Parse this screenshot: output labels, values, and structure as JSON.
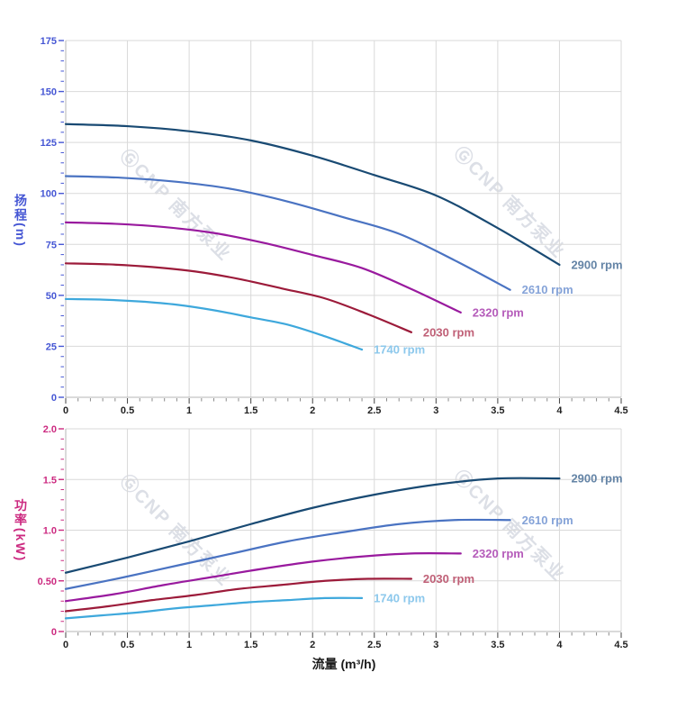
{
  "watermark": {
    "text": "ⒼCNP 南方泵业",
    "color": "#dcdfe6"
  },
  "x_axis": {
    "min": 0,
    "max": 4.5,
    "tick_values": [
      0,
      0.5,
      1,
      1.5,
      2,
      2.5,
      3,
      3.5,
      4,
      4.5
    ],
    "tick_labels": [
      "0",
      "0.5",
      "1",
      "1.5",
      "2",
      "2.5",
      "3",
      "3.5",
      "4",
      "4.5"
    ],
    "minor_step": 0.1,
    "label_color": "#222222"
  },
  "chart_data": [
    {
      "type": "line",
      "name": "head-chart",
      "ylabel": "扬程(m)",
      "xlabel": "",
      "axis_color": "#4556d4",
      "xlim": [
        0,
        4.5
      ],
      "ylim": [
        0,
        175
      ],
      "ytick_values": [
        0,
        25,
        50,
        75,
        100,
        125,
        150,
        175
      ],
      "ytick_labels": [
        "0",
        "25",
        "50",
        "75",
        "100",
        "125",
        "150",
        "175"
      ],
      "y_minor_step": 5,
      "grid": true,
      "legend_position": "curve-end",
      "series": [
        {
          "name": "2900 rpm",
          "color": "#194a73",
          "label_color": "#6484a6",
          "x": [
            0,
            0.5,
            1,
            1.5,
            2,
            2.5,
            3,
            3.5,
            4
          ],
          "y": [
            134,
            133,
            130.5,
            126,
            118.5,
            109,
            99,
            83,
            65
          ]
        },
        {
          "name": "2610 rpm",
          "color": "#4a73c2",
          "label_color": "#85a3d8",
          "x": [
            0,
            0.45,
            0.9,
            1.35,
            1.8,
            2.25,
            2.7,
            3.15,
            3.6
          ],
          "y": [
            108.5,
            107.7,
            105.7,
            102.1,
            96,
            88.3,
            80.2,
            67.2,
            52.7
          ]
        },
        {
          "name": "2320 rpm",
          "color": "#991a9e",
          "label_color": "#b55cba",
          "x": [
            0,
            0.4,
            0.8,
            1.2,
            1.6,
            2,
            2.4,
            2.8,
            3.2
          ],
          "y": [
            85.8,
            85.1,
            83.5,
            80.6,
            75.8,
            69.8,
            63.4,
            53.1,
            41.6
          ]
        },
        {
          "name": "2030 rpm",
          "color": "#9c1b3a",
          "label_color": "#c06077",
          "x": [
            0,
            0.35,
            0.7,
            1.05,
            1.4,
            1.75,
            2.1,
            2.45,
            2.8
          ],
          "y": [
            65.7,
            65.2,
            63.9,
            61.7,
            58.1,
            53.4,
            48.5,
            40.7,
            31.9
          ]
        },
        {
          "name": "1740 rpm",
          "color": "#3ea8dc",
          "label_color": "#8cc8ec",
          "x": [
            0,
            0.3,
            0.6,
            0.9,
            1.2,
            1.5,
            1.8,
            2.1,
            2.4
          ],
          "y": [
            48.2,
            47.9,
            47,
            45.4,
            42.7,
            39.2,
            35.6,
            29.9,
            23.4
          ]
        }
      ]
    },
    {
      "type": "line",
      "name": "power-chart",
      "ylabel": "功率(kW)",
      "xlabel": "流量 (m³/h)",
      "axis_color": "#cc2a80",
      "xlim": [
        0,
        4.5
      ],
      "ylim": [
        0,
        2
      ],
      "ytick_values": [
        0,
        0.5,
        1,
        1.5,
        2
      ],
      "ytick_labels": [
        "0",
        "0.50",
        "1.0",
        "1.5",
        "2.0"
      ],
      "y_minor_step": 0.1,
      "grid": true,
      "legend_position": "curve-end",
      "series": [
        {
          "name": "2900 rpm",
          "color": "#194a73",
          "label_color": "#6484a6",
          "x": [
            0,
            0.5,
            1,
            1.5,
            2,
            2.5,
            3,
            3.5,
            4
          ],
          "y": [
            0.58,
            0.73,
            0.89,
            1.06,
            1.22,
            1.35,
            1.45,
            1.51,
            1.51
          ]
        },
        {
          "name": "2610 rpm",
          "color": "#4a73c2",
          "label_color": "#85a3d8",
          "x": [
            0,
            0.45,
            0.9,
            1.35,
            1.8,
            2.25,
            2.7,
            3.15,
            3.6
          ],
          "y": [
            0.42,
            0.53,
            0.65,
            0.77,
            0.89,
            0.98,
            1.06,
            1.1,
            1.1
          ]
        },
        {
          "name": "2320 rpm",
          "color": "#991a9e",
          "label_color": "#b55cba",
          "x": [
            0,
            0.4,
            0.8,
            1.2,
            1.6,
            2,
            2.4,
            2.8,
            3.2
          ],
          "y": [
            0.3,
            0.37,
            0.46,
            0.54,
            0.62,
            0.69,
            0.74,
            0.77,
            0.77
          ]
        },
        {
          "name": "2030 rpm",
          "color": "#9c1b3a",
          "label_color": "#c06077",
          "x": [
            0,
            0.35,
            0.7,
            1.05,
            1.4,
            1.75,
            2.1,
            2.45,
            2.8
          ],
          "y": [
            0.2,
            0.25,
            0.31,
            0.36,
            0.42,
            0.46,
            0.5,
            0.52,
            0.52
          ]
        },
        {
          "name": "1740 rpm",
          "color": "#3ea8dc",
          "label_color": "#8cc8ec",
          "x": [
            0,
            0.3,
            0.6,
            0.9,
            1.2,
            1.5,
            1.8,
            2.1,
            2.4
          ],
          "y": [
            0.13,
            0.16,
            0.19,
            0.23,
            0.26,
            0.29,
            0.31,
            0.33,
            0.33
          ]
        }
      ]
    }
  ]
}
